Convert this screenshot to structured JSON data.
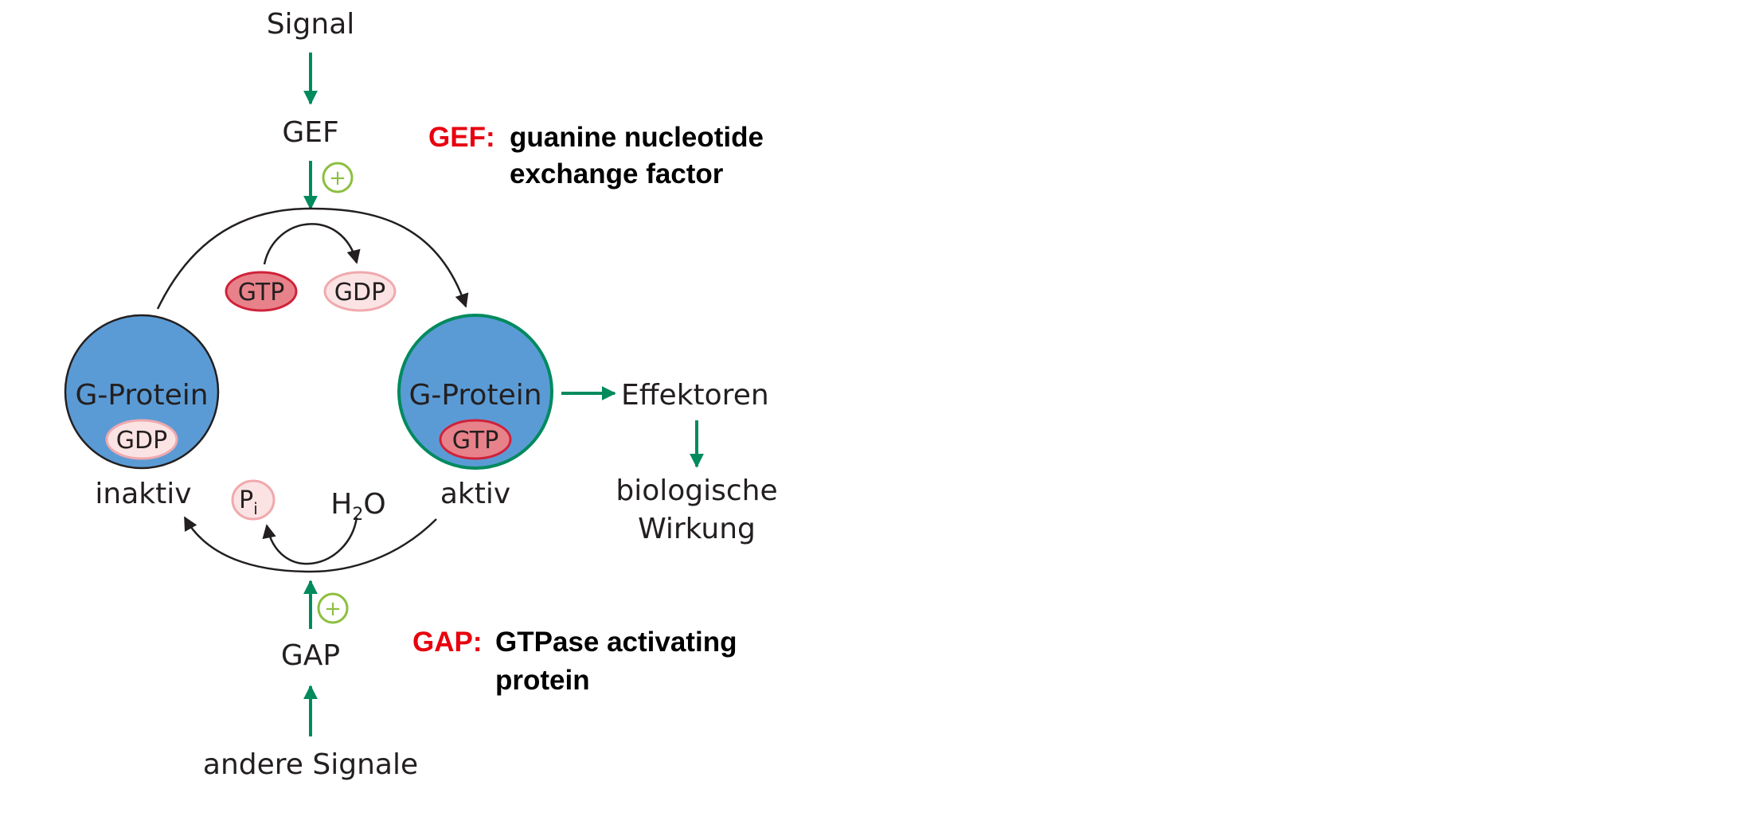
{
  "diagram": {
    "signal_label": "Signal",
    "gef_label": "GEF",
    "gap_label": "GAP",
    "other_signals_label": "andere Signale",
    "gtp_pill_top": "GTP",
    "gdp_pill_top": "GDP",
    "inactive_protein": {
      "label": "G-Protein",
      "nucleotide": "GDP",
      "state": "inaktiv"
    },
    "active_protein": {
      "label": "G-Protein",
      "nucleotide": "GTP",
      "state": "aktiv"
    },
    "effectors_label": "Effektoren",
    "biological_effect_line1": "biologische",
    "biological_effect_line2": "Wirkung",
    "pi_main": "P",
    "pi_sub": "i",
    "water_h": "H",
    "water_sub": "2",
    "water_o": "O",
    "plus_sign": "+",
    "colors": {
      "arrow_green": "#008a5e",
      "plus_green": "#8cbf3f",
      "protein_blue": "#5b9bd5",
      "gtp_fill": "#e8828a",
      "gtp_stroke": "#d0223a",
      "gdp_fill": "#fbe3e4",
      "gdp_stroke": "#f0a9ae",
      "key_red": "#e8000e"
    }
  },
  "notes": {
    "gef_key": "GEF:",
    "gef_line1": "guanine nucleotide",
    "gef_line2": "exchange factor",
    "gap_key": "GAP:",
    "gap_line1": "GTPase activating",
    "gap_line2": "protein"
  }
}
